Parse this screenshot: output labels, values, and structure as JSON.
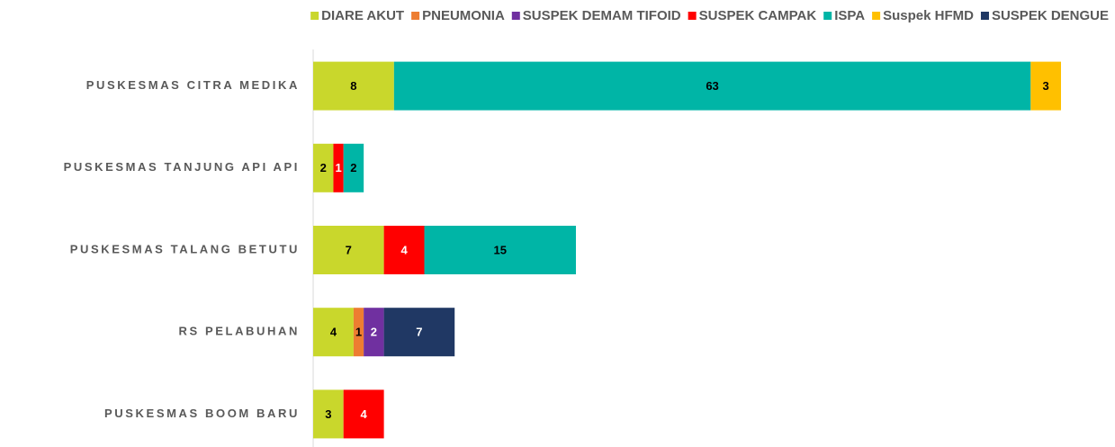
{
  "chart_data": {
    "type": "stacked_bar_horizontal",
    "categories": [
      "PUSKESMAS CITRA MEDIKA",
      "PUSKESMAS TANJUNG API API",
      "PUSKESMAS TALANG BETUTU",
      "RS PELABUHAN",
      "PUSKESMAS BOOM BARU"
    ],
    "series": [
      {
        "name": "DIARE AKUT",
        "color": "#c9d72c",
        "values": [
          8,
          2,
          7,
          4,
          3
        ]
      },
      {
        "name": "PNEUMONIA",
        "color": "#ed7d31",
        "values": [
          null,
          null,
          null,
          1,
          null
        ]
      },
      {
        "name": "SUSPEK DEMAM TIFOID",
        "color": "#7030a0",
        "values": [
          null,
          null,
          null,
          2,
          null
        ]
      },
      {
        "name": "SUSPEK CAMPAK",
        "color": "#ff0000",
        "values": [
          null,
          1,
          4,
          null,
          4
        ]
      },
      {
        "name": "ISPA",
        "color": "#00b5a6",
        "values": [
          63,
          2,
          15,
          null,
          null
        ]
      },
      {
        "name": "Suspek HFMD",
        "color": "#ffc000",
        "values": [
          3,
          null,
          null,
          null,
          null
        ]
      },
      {
        "name": "SUSPEK DENGUE",
        "color": "#203864",
        "values": [
          null,
          null,
          null,
          7,
          null
        ]
      }
    ],
    "legend": "top"
  }
}
